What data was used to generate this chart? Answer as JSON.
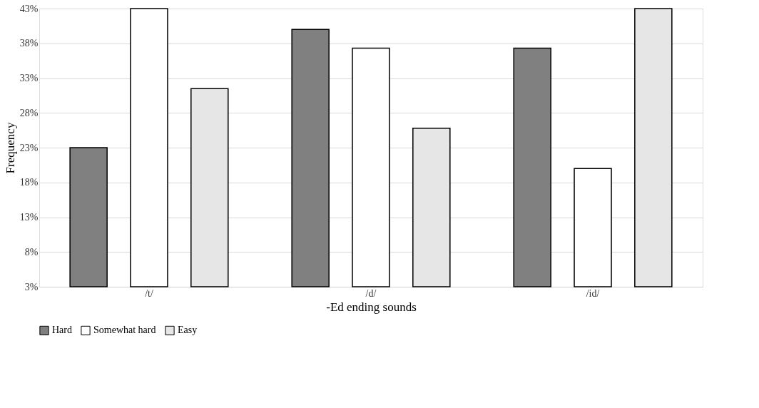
{
  "chart_data": {
    "type": "bar",
    "xlabel": "-Ed ending sounds",
    "ylabel": "Frequency",
    "categories": [
      "/t/",
      "/d/",
      "/id/"
    ],
    "series": [
      {
        "name": "Hard",
        "color": "#808080",
        "values": [
          23,
          40,
          37.3
        ]
      },
      {
        "name": "Somewhat hard",
        "color": "#ffffff",
        "values": [
          43,
          37.3,
          20
        ]
      },
      {
        "name": "Easy",
        "color": "#e6e6e6",
        "values": [
          31.5,
          25.8,
          43
        ]
      }
    ],
    "ylim": [
      3,
      43
    ],
    "yticks": [
      {
        "value": 3,
        "label": "3%"
      },
      {
        "value": 8,
        "label": "8%"
      },
      {
        "value": 13,
        "label": "13%"
      },
      {
        "value": 18,
        "label": "18%"
      },
      {
        "value": 23,
        "label": "23%"
      },
      {
        "value": 28,
        "label": "28%"
      },
      {
        "value": 33,
        "label": "33%"
      },
      {
        "value": 38,
        "label": "38%"
      },
      {
        "value": 43,
        "label": "43%"
      }
    ],
    "grid": "y",
    "legend": "bottom"
  }
}
